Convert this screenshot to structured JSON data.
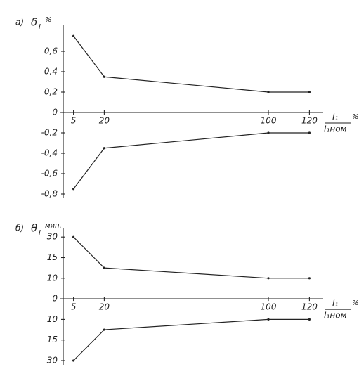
{
  "chart_data": [
    {
      "type": "line",
      "panel_label": "а)",
      "y_symbol": "δ",
      "y_subscript": "I",
      "y_unit": "%",
      "x_numerator": "I₁",
      "x_denominator": "I₁ном",
      "x_unit": "%",
      "xlim": [
        0,
        125
      ],
      "xticks": [
        5,
        20,
        100,
        120
      ],
      "ylim": [
        -0.8,
        0.8
      ],
      "yticks": [
        {
          "value": 0.6,
          "label": "0,6"
        },
        {
          "value": 0.4,
          "label": "0,4"
        },
        {
          "value": 0.2,
          "label": "0,2"
        },
        0,
        {
          "value": -0.2,
          "label": "-0,2"
        },
        {
          "value": -0.4,
          "label": "-0,4"
        },
        {
          "value": -0.6,
          "label": "-0,6"
        },
        {
          "value": -0.8,
          "label": "-0,8"
        }
      ],
      "x": [
        5,
        20,
        100,
        120
      ],
      "series": [
        {
          "color": "#222222",
          "values": [
            0.75,
            0.35,
            0.2,
            0.2
          ]
        },
        {
          "color": "#222222",
          "values": [
            -0.75,
            -0.35,
            -0.2,
            -0.2
          ]
        }
      ]
    },
    {
      "type": "line",
      "panel_label": "б)",
      "y_symbol": "θ",
      "y_subscript": "I",
      "y_unit": "мин.",
      "x_numerator": "I₁",
      "x_denominator": "I₁ном",
      "x_unit": "%",
      "xlim": [
        0,
        125
      ],
      "xticks": [
        5,
        20,
        100,
        120
      ],
      "ylim": [
        -30,
        30
      ],
      "yticks": [
        30,
        15,
        10,
        0,
        {
          "value": -10,
          "label": "10"
        },
        {
          "value": -15,
          "label": "15"
        },
        {
          "value": -30,
          "label": "30"
        }
      ],
      "x": [
        5,
        20,
        100,
        120
      ],
      "series": [
        {
          "color": "#222222",
          "values": [
            30,
            12.5,
            10,
            10
          ]
        },
        {
          "color": "#222222",
          "values": [
            -30,
            -12.5,
            -10,
            -10
          ]
        }
      ]
    }
  ]
}
